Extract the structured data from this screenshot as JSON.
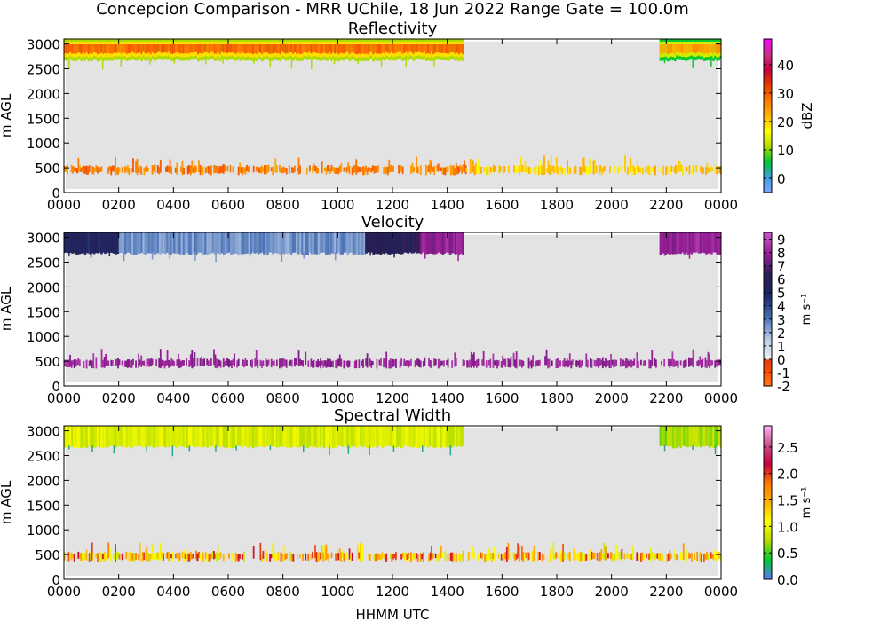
{
  "figure_title": "Concepcion Comparison - MRR UChile, 18 Jun 2022 Range Gate = 100.0m",
  "shared_xlabel": "HHMM UTC",
  "colors": {
    "background_fill": "#e3e3e3",
    "reflectivity_stops": [
      "#7fa0ff",
      "#3da0e0",
      "#00c832",
      "#b4dc00",
      "#ffff00",
      "#ffb400",
      "#ff7800",
      "#e63c00",
      "#c8003c",
      "#c8328c",
      "#ff00ff"
    ],
    "velocity_positive_stops": [
      "#f0f0f0",
      "#b4c8e6",
      "#466eb4",
      "#1e2864",
      "#281e50",
      "#961e96",
      "#c85ac8"
    ],
    "velocity_negative_stops": [
      "#ff7814",
      "#ff5000",
      "#dc3c14"
    ],
    "spectral_width_stops": [
      "#5a78ff",
      "#00c832",
      "#b4dc00",
      "#ffff00",
      "#ffb400",
      "#ff7800",
      "#c8003c",
      "#c8508c",
      "#ffb4ff"
    ]
  },
  "chart_data": [
    {
      "type": "heatmap",
      "title": "Reflectivity",
      "xlabel": "",
      "ylabel": "m AGL",
      "xlim": [
        "0000",
        "0000"
      ],
      "xticks": [
        "0000",
        "0200",
        "0400",
        "0600",
        "0800",
        "1000",
        "1200",
        "1400",
        "1600",
        "1800",
        "2000",
        "2200",
        "0000"
      ],
      "ylim": [
        0,
        3100
      ],
      "yticks": [
        "0",
        "500",
        "1000",
        "1500",
        "2000",
        "2500",
        "3000"
      ],
      "colorbar": {
        "label": "dBZ",
        "range": [
          -5,
          49
        ],
        "ticks": [
          "0",
          "10",
          "20",
          "30",
          "40"
        ]
      },
      "regions": [
        {
          "layer": "upper echo band",
          "time_start": "0000",
          "time_end": "1435",
          "height_range_m": [
            2700,
            3100
          ],
          "core_value_dbz": 29
        },
        {
          "layer": "upper echo band",
          "time_start": "2145",
          "time_end": "0000",
          "height_range_m": [
            2700,
            3100
          ],
          "core_value_dbz": 24
        },
        {
          "layer": "low-level returns",
          "time_start": "0000",
          "time_end": "1440",
          "height_range_m": [
            300,
            750
          ],
          "typical_value_dbz": 27
        },
        {
          "layer": "low-level returns",
          "time_start": "1440",
          "time_end": "0000",
          "height_range_m": [
            300,
            750
          ],
          "typical_value_dbz": 20
        }
      ]
    },
    {
      "type": "heatmap",
      "title": "Velocity",
      "xlabel": "",
      "ylabel": "m AGL",
      "xlim": [
        "0000",
        "0000"
      ],
      "xticks": [
        "0000",
        "0200",
        "0400",
        "0600",
        "0800",
        "1000",
        "1200",
        "1400",
        "1600",
        "1800",
        "2000",
        "2200",
        "0000"
      ],
      "ylim": [
        0,
        3100
      ],
      "yticks": [
        "0",
        "500",
        "1000",
        "1500",
        "2000",
        "2500",
        "3000"
      ],
      "colorbar": {
        "label": "m s⁻¹",
        "range": [
          -2,
          9.5
        ],
        "ticks": [
          "-2",
          "-1",
          "0",
          "1",
          "2",
          "3",
          "4",
          "5",
          "6",
          "7",
          "8",
          "9"
        ]
      },
      "regions": [
        {
          "layer": "upper echo band",
          "time_start": "0000",
          "time_end": "0200",
          "height_range_m": [
            2700,
            3100
          ],
          "typical_value_ms": 5
        },
        {
          "layer": "upper echo band",
          "time_start": "0200",
          "time_end": "1100",
          "height_range_m": [
            2700,
            3100
          ],
          "typical_value_ms": 2.5
        },
        {
          "layer": "upper echo band",
          "time_start": "1100",
          "time_end": "1300",
          "height_range_m": [
            2700,
            3100
          ],
          "typical_value_ms": 6
        },
        {
          "layer": "upper echo band",
          "time_start": "1300",
          "time_end": "1435",
          "height_range_m": [
            2700,
            3100
          ],
          "typical_value_ms": 8
        },
        {
          "layer": "upper echo band",
          "time_start": "2145",
          "time_end": "0000",
          "height_range_m": [
            2700,
            3100
          ],
          "typical_value_ms": 8
        },
        {
          "layer": "low-level returns",
          "time_start": "0000",
          "time_end": "0000",
          "height_range_m": [
            300,
            750
          ],
          "typical_value_ms": 8
        }
      ]
    },
    {
      "type": "heatmap",
      "title": "Spectral Width",
      "xlabel": "HHMM UTC",
      "ylabel": "m AGL",
      "xlim": [
        "0000",
        "0000"
      ],
      "xticks": [
        "0000",
        "0200",
        "0400",
        "0600",
        "0800",
        "1000",
        "1200",
        "1400",
        "1600",
        "1800",
        "2000",
        "2200",
        "0000"
      ],
      "ylim": [
        0,
        3100
      ],
      "yticks": [
        "0",
        "500",
        "1000",
        "1500",
        "2000",
        "2500",
        "3000"
      ],
      "colorbar": {
        "label": "m s⁻¹",
        "range": [
          0,
          2.9
        ],
        "ticks": [
          "0.0",
          "0.5",
          "1.0",
          "1.5",
          "2.0",
          "2.5"
        ]
      },
      "regions": [
        {
          "layer": "upper echo band",
          "time_start": "0000",
          "time_end": "1435",
          "height_range_m": [
            2700,
            3100
          ],
          "typical_value_ms": 0.9
        },
        {
          "layer": "upper echo band",
          "time_start": "2145",
          "time_end": "0000",
          "height_range_m": [
            2700,
            3100
          ],
          "typical_value_ms": 0.7
        },
        {
          "layer": "low-level returns",
          "time_start": "0000",
          "time_end": "0000",
          "height_range_m": [
            300,
            750
          ],
          "typical_value_ms": 1.5
        }
      ]
    }
  ]
}
